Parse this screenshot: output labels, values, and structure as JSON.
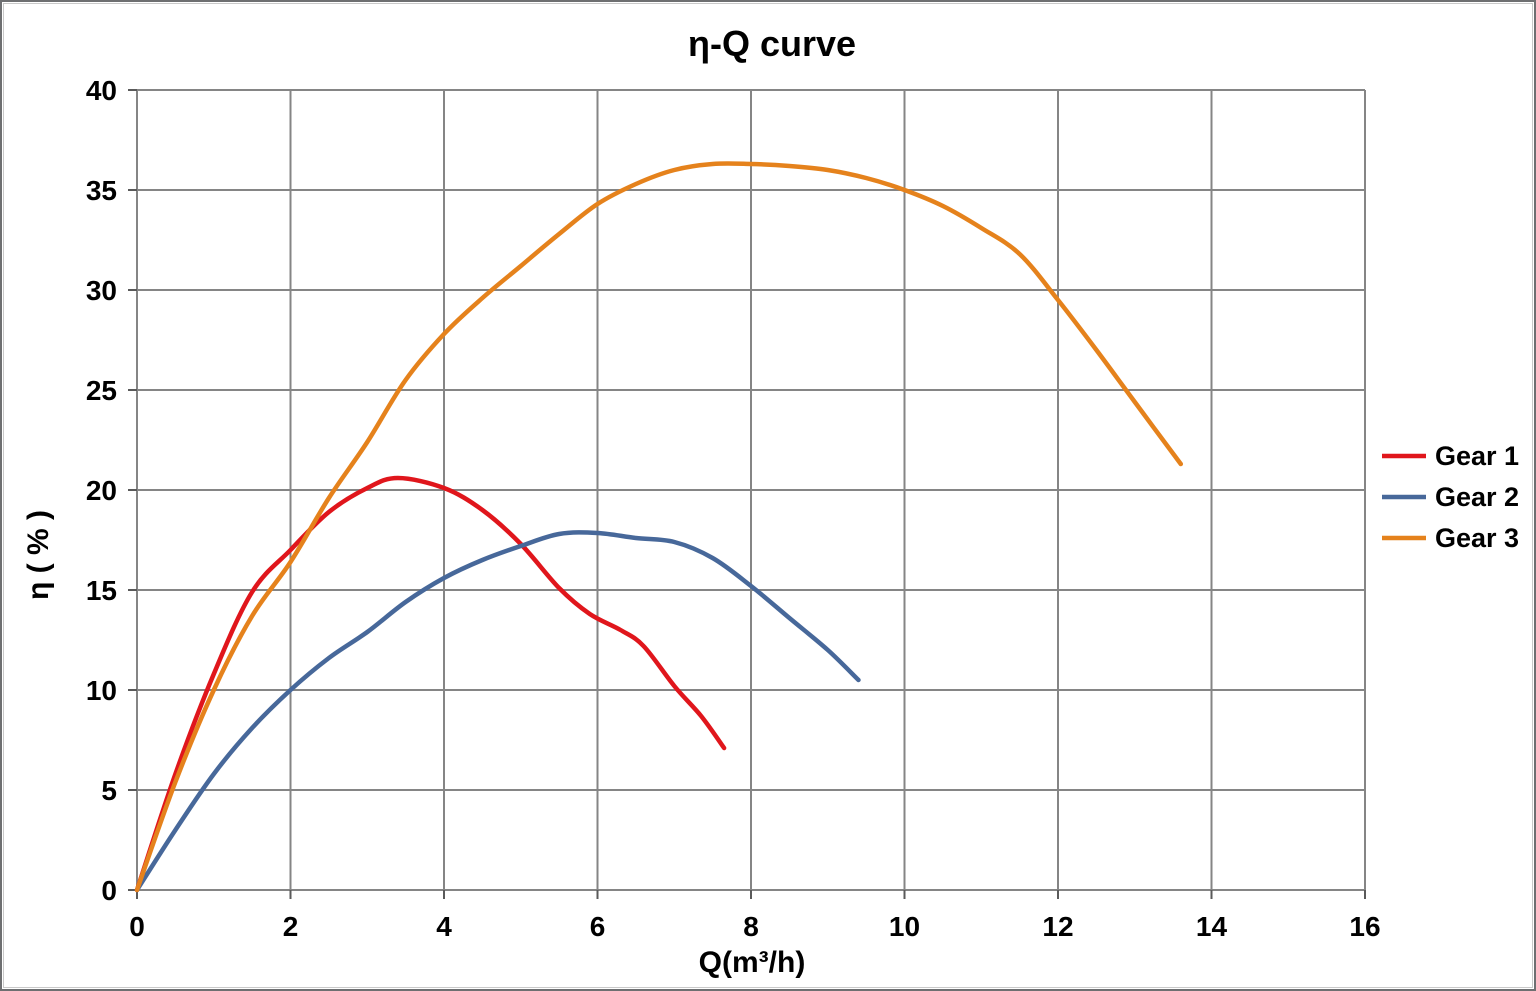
{
  "title": "η-Q  curve",
  "axes": {
    "x": {
      "label": "Q(m³/h)",
      "min": 0,
      "max": 16,
      "ticks": [
        0,
        2,
        4,
        6,
        8,
        10,
        12,
        14,
        16
      ],
      "tick_labels": [
        "0",
        "2",
        "4",
        "6",
        "8",
        "10",
        "12",
        "14",
        "16"
      ]
    },
    "y": {
      "label": "η ( % )",
      "min": 0,
      "max": 40,
      "ticks": [
        0,
        5,
        10,
        15,
        20,
        25,
        30,
        35,
        40
      ],
      "tick_labels": [
        "0",
        "5",
        "10",
        "15",
        "20",
        "25",
        "30",
        "35",
        "40"
      ]
    }
  },
  "legend": {
    "position": "right",
    "entries": [
      {
        "label": "Gear 1",
        "color": "#e0161c"
      },
      {
        "label": "Gear 2",
        "color": "#47689a"
      },
      {
        "label": "Gear 3",
        "color": "#e5821c"
      }
    ]
  },
  "colors": {
    "background": "#ffffff",
    "gridline": "#858585",
    "tick": "#5a5a5a",
    "text": "#000000",
    "frame_border": "#6e6f71"
  },
  "chart_data": {
    "type": "line",
    "title": "η-Q  curve",
    "xlabel": "Q(m³/h)",
    "ylabel": "η ( % )",
    "xlim": [
      0,
      16
    ],
    "ylim": [
      0,
      40
    ],
    "grid": true,
    "legend_position": "right",
    "series": [
      {
        "name": "Gear 1",
        "color": "#e0161c",
        "points": [
          [
            0,
            0
          ],
          [
            0.5,
            5.8
          ],
          [
            1,
            10.8
          ],
          [
            1.5,
            14.9
          ],
          [
            2,
            17.0
          ],
          [
            2.5,
            18.9
          ],
          [
            3,
            20.1
          ],
          [
            3.4,
            20.6
          ],
          [
            4,
            20.1
          ],
          [
            4.5,
            19.0
          ],
          [
            5,
            17.3
          ],
          [
            5.5,
            15.1
          ],
          [
            5.9,
            13.8
          ],
          [
            6.3,
            13.0
          ],
          [
            6.6,
            12.2
          ],
          [
            7,
            10.2
          ],
          [
            7.35,
            8.7
          ],
          [
            7.65,
            7.1
          ]
        ]
      },
      {
        "name": "Gear 2",
        "color": "#47689a",
        "points": [
          [
            0,
            0
          ],
          [
            0.5,
            3.0
          ],
          [
            1,
            5.8
          ],
          [
            1.5,
            8.1
          ],
          [
            2,
            10.0
          ],
          [
            2.5,
            11.6
          ],
          [
            3,
            12.9
          ],
          [
            3.5,
            14.4
          ],
          [
            4,
            15.6
          ],
          [
            4.5,
            16.5
          ],
          [
            5,
            17.2
          ],
          [
            5.5,
            17.8
          ],
          [
            6,
            17.85
          ],
          [
            6.5,
            17.6
          ],
          [
            7,
            17.4
          ],
          [
            7.5,
            16.6
          ],
          [
            8,
            15.2
          ],
          [
            8.5,
            13.6
          ],
          [
            9,
            12.0
          ],
          [
            9.4,
            10.5
          ]
        ]
      },
      {
        "name": "Gear 3",
        "color": "#e5821c",
        "points": [
          [
            0,
            0
          ],
          [
            0.5,
            5.4
          ],
          [
            1,
            10.0
          ],
          [
            1.5,
            13.7
          ],
          [
            2,
            16.4
          ],
          [
            2.5,
            19.6
          ],
          [
            3,
            22.4
          ],
          [
            3.5,
            25.5
          ],
          [
            4,
            27.8
          ],
          [
            4.5,
            29.6
          ],
          [
            5,
            31.2
          ],
          [
            5.5,
            32.8
          ],
          [
            6,
            34.3
          ],
          [
            6.5,
            35.3
          ],
          [
            7,
            36.0
          ],
          [
            7.5,
            36.3
          ],
          [
            8,
            36.3
          ],
          [
            8.5,
            36.2
          ],
          [
            9,
            36.0
          ],
          [
            9.5,
            35.6
          ],
          [
            10,
            35.0
          ],
          [
            10.5,
            34.2
          ],
          [
            11,
            33.1
          ],
          [
            11.5,
            31.8
          ],
          [
            12,
            29.5
          ],
          [
            12.5,
            27.0
          ],
          [
            13,
            24.4
          ],
          [
            13.6,
            21.3
          ]
        ]
      }
    ]
  }
}
